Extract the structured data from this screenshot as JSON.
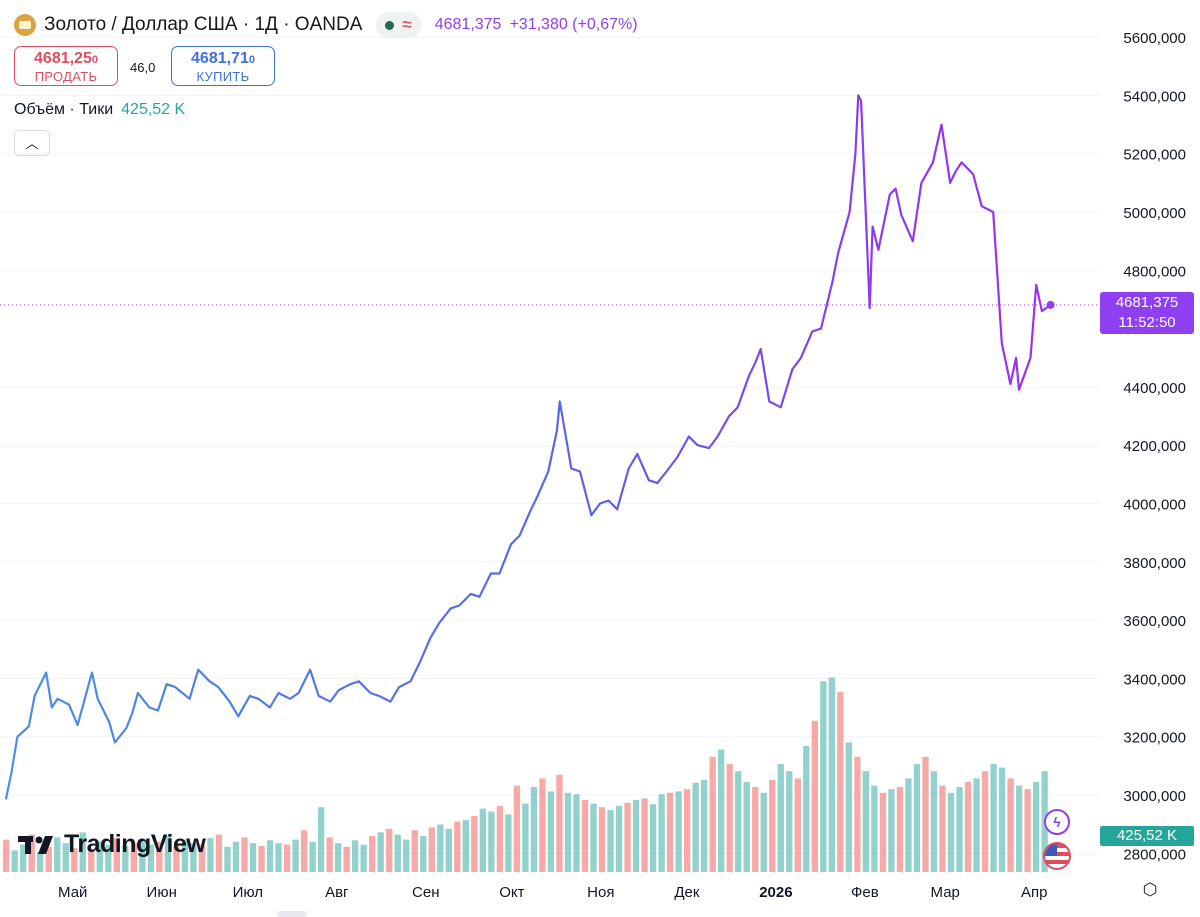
{
  "header": {
    "symbol": "Золото / Доллар США · 1Д · OANDA",
    "approx_icon": "≈",
    "price": "4681,375",
    "change": "+31,380 (+0,67%)"
  },
  "trade": {
    "sell_price": "4681,25",
    "sell_price_small": "0",
    "sell_label": "ПРОДАТЬ",
    "spread": "46,0",
    "buy_price": "4681,71",
    "buy_price_small": "0",
    "buy_label": "КУПИТЬ"
  },
  "volume_legend": {
    "label": "Объём · Тики",
    "value": "425,52 K"
  },
  "collapse_icon": "chevron-up-icon",
  "price_tag": {
    "price": "4681,375",
    "time": "11:52:50"
  },
  "volume_tag": "425,52 K",
  "logo": "TradingView",
  "colors": {
    "line_start": "#4a90e2",
    "line_end": "#9b30f0",
    "volume_up": "#26a69a",
    "volume_down": "#ef5350",
    "price_accent": "#8e3ff0"
  },
  "chart_data": {
    "type": "line",
    "symbol": "XAU/USD",
    "interval": "1D",
    "y_ticks": [
      "5600,000",
      "5400,000",
      "5200,000",
      "5000,000",
      "4800,000",
      "4400,000",
      "4200,000",
      "4000,000",
      "3800,000",
      "3600,000",
      "3400,000",
      "3200,000",
      "3000,000",
      "2800,000"
    ],
    "y_tick_values": [
      5600,
      5400,
      5200,
      5000,
      4800,
      4400,
      4200,
      4000,
      3800,
      3600,
      3400,
      3200,
      3000,
      2800
    ],
    "x_ticks": [
      "Май",
      "Июн",
      "Июл",
      "Авг",
      "Сен",
      "Окт",
      "Ноя",
      "Дек",
      "2026",
      "Фев",
      "Мар",
      "Апр"
    ],
    "ylim": [
      2600,
      5650
    ],
    "last_price": 4681.375,
    "price_series": [
      [
        "2025-04-07",
        2985
      ],
      [
        "2025-04-09",
        3080
      ],
      [
        "2025-04-11",
        3200
      ],
      [
        "2025-04-15",
        3235
      ],
      [
        "2025-04-17",
        3340
      ],
      [
        "2025-04-21",
        3420
      ],
      [
        "2025-04-23",
        3300
      ],
      [
        "2025-04-25",
        3330
      ],
      [
        "2025-04-29",
        3310
      ],
      [
        "2025-05-02",
        3240
      ],
      [
        "2025-05-07",
        3420
      ],
      [
        "2025-05-09",
        3330
      ],
      [
        "2025-05-13",
        3250
      ],
      [
        "2025-05-15",
        3180
      ],
      [
        "2025-05-19",
        3230
      ],
      [
        "2025-05-21",
        3280
      ],
      [
        "2025-05-23",
        3350
      ],
      [
        "2025-05-27",
        3300
      ],
      [
        "2025-05-30",
        3290
      ],
      [
        "2025-06-02",
        3380
      ],
      [
        "2025-06-05",
        3370
      ],
      [
        "2025-06-10",
        3330
      ],
      [
        "2025-06-13",
        3430
      ],
      [
        "2025-06-17",
        3390
      ],
      [
        "2025-06-20",
        3370
      ],
      [
        "2025-06-24",
        3320
      ],
      [
        "2025-06-27",
        3270
      ],
      [
        "2025-07-01",
        3340
      ],
      [
        "2025-07-04",
        3330
      ],
      [
        "2025-07-08",
        3300
      ],
      [
        "2025-07-11",
        3350
      ],
      [
        "2025-07-15",
        3330
      ],
      [
        "2025-07-18",
        3350
      ],
      [
        "2025-07-22",
        3430
      ],
      [
        "2025-07-25",
        3340
      ],
      [
        "2025-07-29",
        3320
      ],
      [
        "2025-08-01",
        3360
      ],
      [
        "2025-08-05",
        3380
      ],
      [
        "2025-08-08",
        3390
      ],
      [
        "2025-08-12",
        3350
      ],
      [
        "2025-08-15",
        3340
      ],
      [
        "2025-08-19",
        3320
      ],
      [
        "2025-08-22",
        3370
      ],
      [
        "2025-08-26",
        3390
      ],
      [
        "2025-08-29",
        3450
      ],
      [
        "2025-09-02",
        3540
      ],
      [
        "2025-09-05",
        3590
      ],
      [
        "2025-09-09",
        3640
      ],
      [
        "2025-09-12",
        3650
      ],
      [
        "2025-09-16",
        3690
      ],
      [
        "2025-09-19",
        3680
      ],
      [
        "2025-09-23",
        3760
      ],
      [
        "2025-09-26",
        3760
      ],
      [
        "2025-09-30",
        3860
      ],
      [
        "2025-10-03",
        3890
      ],
      [
        "2025-10-07",
        3980
      ],
      [
        "2025-10-09",
        4020
      ],
      [
        "2025-10-13",
        4110
      ],
      [
        "2025-10-16",
        4250
      ],
      [
        "2025-10-17",
        4350
      ],
      [
        "2025-10-21",
        4120
      ],
      [
        "2025-10-24",
        4110
      ],
      [
        "2025-10-28",
        3960
      ],
      [
        "2025-10-31",
        4000
      ],
      [
        "2025-11-03",
        4010
      ],
      [
        "2025-11-06",
        3980
      ],
      [
        "2025-11-10",
        4120
      ],
      [
        "2025-11-13",
        4170
      ],
      [
        "2025-11-17",
        4080
      ],
      [
        "2025-11-20",
        4070
      ],
      [
        "2025-11-24",
        4120
      ],
      [
        "2025-11-27",
        4160
      ],
      [
        "2025-12-01",
        4230
      ],
      [
        "2025-12-04",
        4200
      ],
      [
        "2025-12-08",
        4190
      ],
      [
        "2025-12-11",
        4230
      ],
      [
        "2025-12-15",
        4300
      ],
      [
        "2025-12-18",
        4330
      ],
      [
        "2025-12-22",
        4440
      ],
      [
        "2025-12-24",
        4480
      ],
      [
        "2025-12-26",
        4530
      ],
      [
        "2025-12-29",
        4350
      ],
      [
        "2026-01-02",
        4330
      ],
      [
        "2026-01-06",
        4460
      ],
      [
        "2026-01-09",
        4500
      ],
      [
        "2026-01-13",
        4590
      ],
      [
        "2026-01-16",
        4600
      ],
      [
        "2026-01-20",
        4760
      ],
      [
        "2026-01-22",
        4860
      ],
      [
        "2026-01-26",
        5000
      ],
      [
        "2026-01-28",
        5200
      ],
      [
        "2026-01-29",
        5400
      ],
      [
        "2026-01-30",
        5380
      ],
      [
        "2026-02-02",
        4670
      ],
      [
        "2026-02-03",
        4950
      ],
      [
        "2026-02-05",
        4870
      ],
      [
        "2026-02-09",
        5060
      ],
      [
        "2026-02-11",
        5080
      ],
      [
        "2026-02-13",
        4990
      ],
      [
        "2026-02-17",
        4900
      ],
      [
        "2026-02-20",
        5100
      ],
      [
        "2026-02-24",
        5170
      ],
      [
        "2026-02-27",
        5300
      ],
      [
        "2026-03-02",
        5100
      ],
      [
        "2026-03-04",
        5140
      ],
      [
        "2026-03-06",
        5170
      ],
      [
        "2026-03-10",
        5130
      ],
      [
        "2026-03-13",
        5020
      ],
      [
        "2026-03-17",
        5000
      ],
      [
        "2026-03-20",
        4550
      ],
      [
        "2026-03-23",
        4410
      ],
      [
        "2026-03-25",
        4500
      ],
      [
        "2026-03-26",
        4390
      ],
      [
        "2026-03-30",
        4500
      ],
      [
        "2026-04-01",
        4750
      ],
      [
        "2026-04-03",
        4660
      ],
      [
        "2026-04-06",
        4681.375
      ]
    ],
    "volume_series": [
      {
        "values": [
          45,
          30,
          38,
          52,
          28,
          35,
          48,
          40,
          33,
          55,
          30,
          42,
          38,
          47,
          36,
          40,
          44,
          38,
          42,
          50,
          36,
          45,
          40,
          38,
          47,
          52,
          35,
          42,
          48,
          40,
          36,
          44,
          40,
          38,
          45,
          58,
          42,
          90,
          48,
          40,
          35,
          44,
          38,
          50,
          55,
          60,
          52,
          45,
          58,
          50,
          62,
          66,
          60,
          70,
          72,
          78,
          88,
          84,
          92,
          80,
          120,
          95,
          118,
          130,
          112,
          135,
          110,
          108,
          100,
          95,
          90,
          86,
          92,
          96,
          100,
          102,
          94,
          108,
          110,
          112,
          115,
          124,
          128,
          160,
          170,
          150,
          140,
          125,
          118,
          110,
          128,
          150,
          140,
          130,
          175,
          210,
          265,
          270,
          250,
          180,
          160,
          140,
          120,
          110,
          115,
          118,
          130,
          150,
          160,
          140,
          120,
          110,
          118,
          125,
          130,
          140,
          150,
          145,
          130,
          120,
          115,
          125,
          140
        ],
        "up_pattern": "alternating"
      }
    ]
  }
}
